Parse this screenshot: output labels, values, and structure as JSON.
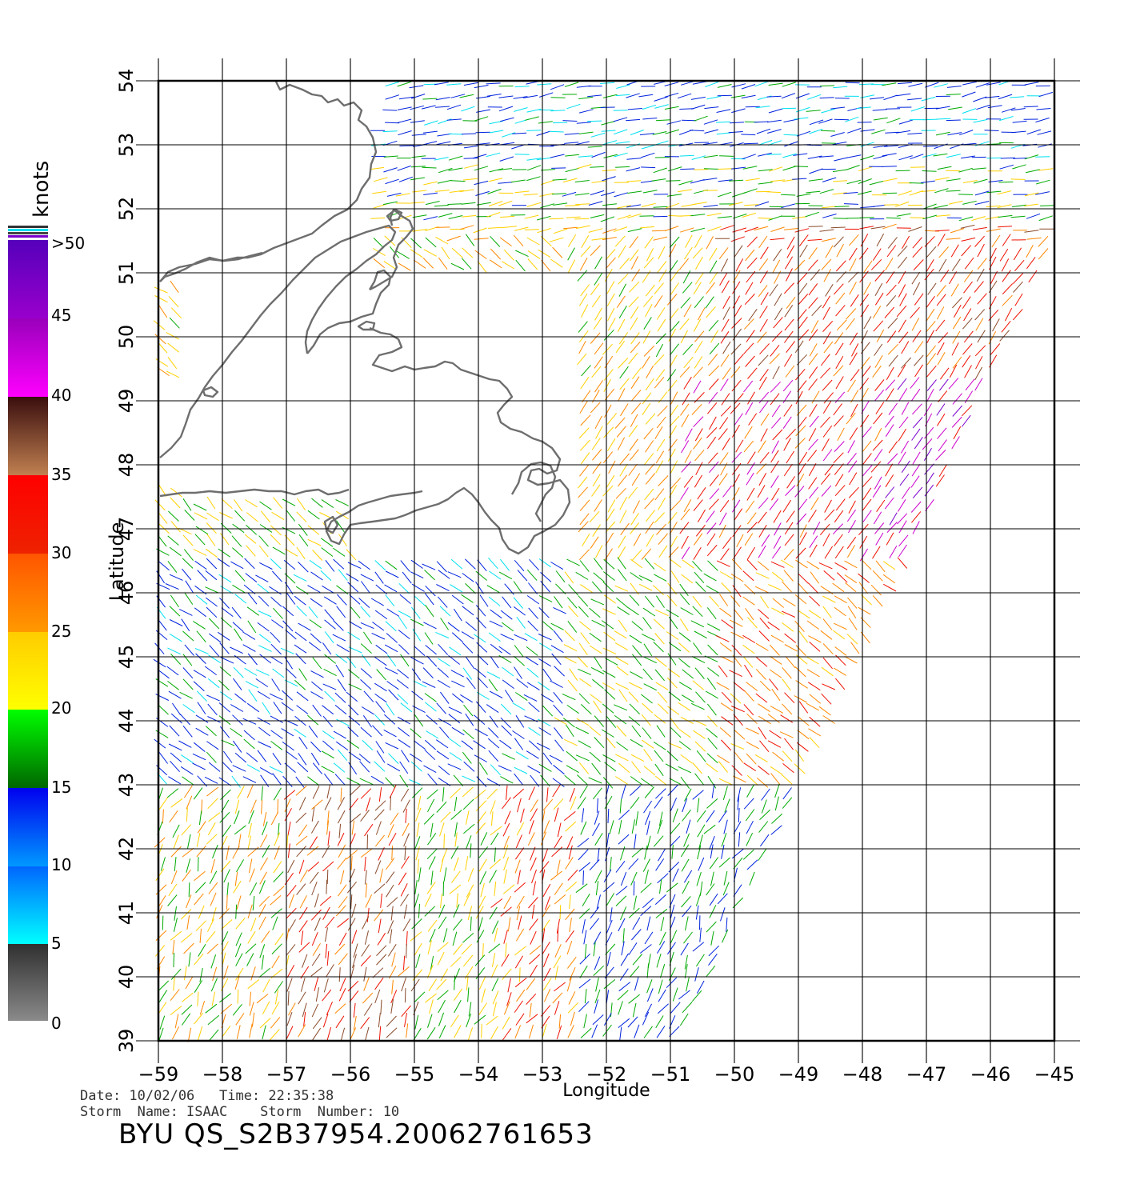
{
  "legend": {
    "unit": "knots",
    "ticks": [
      "0",
      "5",
      "10",
      "15",
      "20",
      "25",
      "30",
      "35",
      "40",
      "45",
      ">50"
    ],
    "colors": {
      "calm": "#5a5a5a",
      "cyan": "#00e0f0",
      "blue": "#0022dd",
      "green": "#00aa00",
      "yellow": "#ffd000",
      "orange": "#ff8800",
      "red": "#ee1100",
      "brown": "#8a4a2a",
      "magenta": "#cc00cc",
      "purple": "#7a00cc"
    }
  },
  "axes": {
    "xlabel": "Longitude",
    "ylabel": "Latitude",
    "x_ticks": [
      "-59",
      "-58",
      "-57",
      "-56",
      "-55",
      "-54",
      "-53",
      "-52",
      "-51",
      "-50",
      "-49",
      "-48",
      "-47",
      "-46",
      "-45"
    ],
    "y_ticks": [
      "39",
      "40",
      "41",
      "42",
      "43",
      "44",
      "45",
      "46",
      "47",
      "48",
      "49",
      "50",
      "51",
      "52",
      "53",
      "54"
    ],
    "lon_range": [
      -59,
      -45
    ],
    "lat_range": [
      39,
      54
    ]
  },
  "info": {
    "date_line": "Date: 10/02/06   Time: 22:35:38",
    "storm_line": "Storm  Name: ISAAC    Storm  Number: 10",
    "product_id": "BYU  QS_S2B37954.20062761653"
  }
}
